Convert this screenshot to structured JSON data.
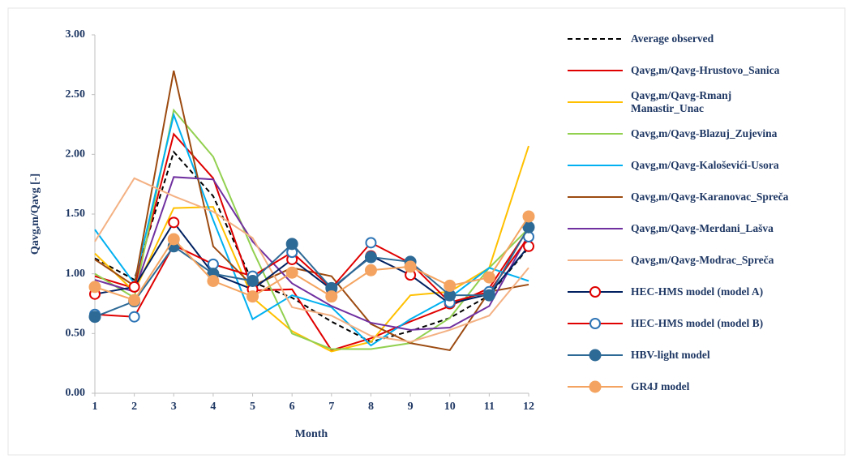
{
  "chart_data": {
    "type": "line",
    "y_label": "Qavg,m/Qavg [-]",
    "x_label": "Month",
    "x": [
      1,
      2,
      3,
      4,
      5,
      6,
      7,
      8,
      9,
      10,
      11,
      12
    ],
    "xlim": [
      1,
      12
    ],
    "xticks": [
      1,
      2,
      3,
      4,
      5,
      6,
      7,
      8,
      9,
      10,
      11,
      12
    ],
    "ylim": [
      0,
      3
    ],
    "yticks": [
      {
        "value": 0,
        "label": "0.00"
      },
      {
        "value": 0.5,
        "label": "0.50"
      },
      {
        "value": 1,
        "label": "1.00"
      },
      {
        "value": 1.5,
        "label": "1.50"
      },
      {
        "value": 2,
        "label": "2.00"
      },
      {
        "value": 2.5,
        "label": "2.50"
      },
      {
        "value": 3,
        "label": "3.00"
      }
    ],
    "grid": false,
    "legend": "right",
    "series": [
      {
        "name": "Average observed",
        "color": "#000000",
        "dash": true,
        "marker": "none",
        "values": [
          1.13,
          0.95,
          2.02,
          1.65,
          0.93,
          0.8,
          0.6,
          0.43,
          0.52,
          0.63,
          0.82,
          1.22
        ]
      },
      {
        "name": "Qavg,m/Qavg-Hrustovo_Sanica",
        "color": "#e00000",
        "marker": "none",
        "values": [
          0.98,
          0.88,
          2.17,
          1.8,
          0.86,
          0.87,
          0.36,
          0.46,
          0.6,
          0.73,
          0.88,
          1.38
        ]
      },
      {
        "name": "Qavg,m/Qavg-Rmanj Manastir_Unac",
        "color": "#ffc000",
        "marker": "none",
        "values": [
          1.17,
          0.85,
          1.55,
          1.56,
          0.8,
          0.52,
          0.35,
          0.43,
          0.82,
          0.85,
          1.05,
          2.07
        ]
      },
      {
        "name": "Qavg,m/Qavg-Blazuj_Zujevina",
        "color": "#92d050",
        "marker": "none",
        "values": [
          1.0,
          0.8,
          2.37,
          1.98,
          1.2,
          0.5,
          0.37,
          0.37,
          0.42,
          0.63,
          1.05,
          1.38
        ]
      },
      {
        "name": "Qavg,m/Qavg-Kaloševići-Usora",
        "color": "#00b0f0",
        "marker": "none",
        "values": [
          1.37,
          0.92,
          2.33,
          1.45,
          0.62,
          0.82,
          0.72,
          0.4,
          0.62,
          0.8,
          1.05,
          0.94
        ]
      },
      {
        "name": "Qavg,m/Qavg-Karanovac_Spreča",
        "color": "#9c4a10",
        "marker": "none",
        "values": [
          1.12,
          0.9,
          2.7,
          1.23,
          0.9,
          1.05,
          0.98,
          0.58,
          0.42,
          0.36,
          0.85,
          0.91
        ]
      },
      {
        "name": "Qavg,m/Qavg-Merdani_Lašva",
        "color": "#7030a0",
        "marker": "none",
        "values": [
          0.95,
          0.85,
          1.81,
          1.79,
          1.27,
          0.92,
          0.73,
          0.59,
          0.53,
          0.55,
          0.73,
          1.33
        ]
      },
      {
        "name": "Qavg,m/Qavg-Modrac_Spreča",
        "color": "#f4b183",
        "marker": "none",
        "values": [
          1.27,
          1.8,
          1.65,
          1.52,
          1.3,
          0.72,
          0.65,
          0.48,
          0.43,
          0.53,
          0.65,
          1.05
        ]
      },
      {
        "name": "HEC-HMS model (model A)",
        "color": "#002060",
        "marker": "open",
        "marker_color": "#e00000",
        "values": [
          0.83,
          0.89,
          1.43,
          1.0,
          0.87,
          1.12,
          0.87,
          1.15,
          0.99,
          0.75,
          0.83,
          1.23
        ]
      },
      {
        "name": "HEC-HMS model (model B)",
        "color": "#e00000",
        "marker": "open",
        "marker_color": "#2e75b6",
        "values": [
          0.66,
          0.64,
          1.24,
          1.08,
          0.98,
          1.18,
          0.88,
          1.26,
          1.09,
          0.76,
          0.85,
          1.31
        ]
      },
      {
        "name": "HBV-light model",
        "color": "#2e6a96",
        "marker": "filled",
        "marker_color": "#2e6a96",
        "values": [
          0.64,
          0.77,
          1.23,
          1.0,
          0.94,
          1.25,
          0.88,
          1.14,
          1.1,
          0.82,
          0.82,
          1.39
        ]
      },
      {
        "name": "GR4J model",
        "color": "#f4a460",
        "marker": "filled",
        "marker_color": "#f4a460",
        "values": [
          0.89,
          0.78,
          1.29,
          0.94,
          0.81,
          1.01,
          0.81,
          1.03,
          1.06,
          0.9,
          0.97,
          1.48
        ]
      }
    ]
  }
}
